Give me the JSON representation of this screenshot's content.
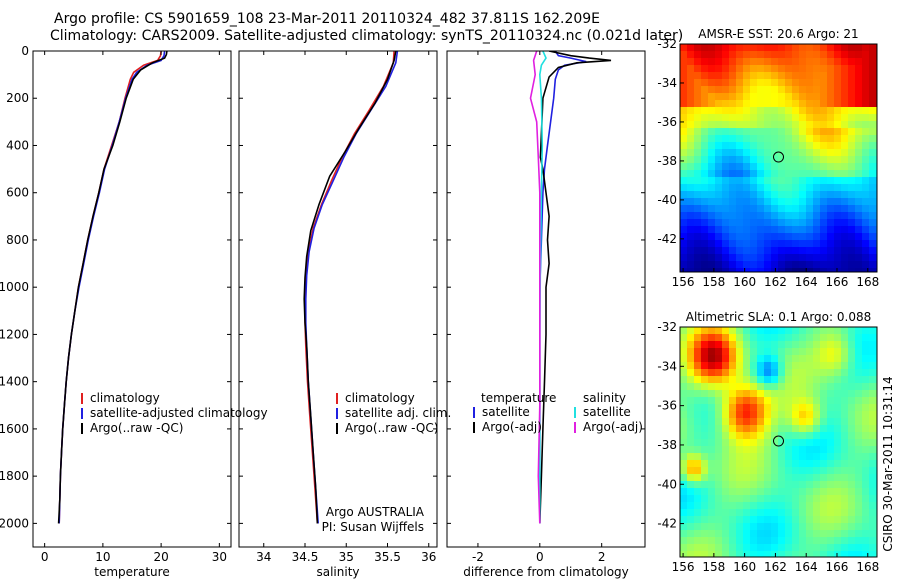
{
  "header": {
    "line1": "Argo profile: CS 5901659_108 23-Mar-2011 20110324_482 37.811S 162.209E",
    "line2": "Climatology: CARS2009. Satellite-adjusted climatology: synTS_20110324.nc (0.021d later)"
  },
  "colors": {
    "red": "#e02020",
    "blue": "#2020e0",
    "black": "#000000",
    "cyan": "#20e0e0",
    "magenta": "#e020e0"
  },
  "chart_data": [
    {
      "type": "line",
      "id": "temperature",
      "xlabel": "temperature",
      "ylabel": "",
      "xlim": [
        -2,
        32
      ],
      "ylim": [
        2100,
        0
      ],
      "xticks": [
        "0",
        "10",
        "20",
        "30"
      ],
      "yticks": [
        "0",
        "200",
        "400",
        "600",
        "800",
        "1000",
        "1200",
        "1400",
        "1600",
        "1800",
        "2000"
      ],
      "legend": [
        "climatology",
        "satellite-adjusted climatology",
        "Argo(..raw -QC)"
      ],
      "series": [
        {
          "name": "climatology",
          "color": "red",
          "points": [
            [
              20.0,
              0
            ],
            [
              19.9,
              20
            ],
            [
              19.4,
              40
            ],
            [
              17.0,
              60
            ],
            [
              15.3,
              90
            ],
            [
              14.7,
              120
            ],
            [
              13.8,
              200
            ],
            [
              12.8,
              300
            ],
            [
              11.5,
              400
            ],
            [
              10.2,
              500
            ],
            [
              9.3,
              600
            ],
            [
              8.3,
              700
            ],
            [
              7.4,
              800
            ],
            [
              6.6,
              900
            ],
            [
              5.8,
              1000
            ],
            [
              5.2,
              1100
            ],
            [
              4.6,
              1200
            ],
            [
              4.1,
              1300
            ],
            [
              3.7,
              1400
            ],
            [
              3.4,
              1500
            ],
            [
              3.1,
              1600
            ],
            [
              2.9,
              1700
            ],
            [
              2.7,
              1800
            ],
            [
              2.6,
              1900
            ],
            [
              2.5,
              2000
            ]
          ]
        },
        {
          "name": "satellite-adjusted climatology",
          "color": "blue",
          "points": [
            [
              20.6,
              0
            ],
            [
              20.5,
              20
            ],
            [
              20.0,
              40
            ],
            [
              17.6,
              60
            ],
            [
              15.8,
              90
            ],
            [
              15.0,
              120
            ],
            [
              13.9,
              200
            ],
            [
              12.8,
              300
            ],
            [
              11.6,
              400
            ],
            [
              10.3,
              500
            ],
            [
              9.4,
              600
            ],
            [
              8.4,
              700
            ],
            [
              7.5,
              800
            ],
            [
              6.7,
              900
            ],
            [
              5.9,
              1000
            ],
            [
              5.2,
              1100
            ],
            [
              4.6,
              1200
            ],
            [
              4.1,
              1300
            ],
            [
              3.7,
              1400
            ],
            [
              3.4,
              1500
            ],
            [
              3.1,
              1600
            ],
            [
              2.9,
              1700
            ],
            [
              2.7,
              1800
            ],
            [
              2.6,
              1900
            ],
            [
              2.5,
              2000
            ]
          ]
        },
        {
          "name": "Argo(..raw -QC)",
          "color": "black",
          "points": [
            [
              21.0,
              0
            ],
            [
              20.9,
              15
            ],
            [
              20.6,
              30
            ],
            [
              18.5,
              50
            ],
            [
              16.5,
              80
            ],
            [
              15.2,
              120
            ],
            [
              14.0,
              200
            ],
            [
              12.9,
              300
            ],
            [
              11.7,
              400
            ],
            [
              10.2,
              500
            ],
            [
              9.3,
              600
            ],
            [
              8.3,
              700
            ],
            [
              7.4,
              800
            ],
            [
              6.6,
              900
            ],
            [
              5.8,
              1000
            ],
            [
              5.2,
              1100
            ],
            [
              4.6,
              1200
            ],
            [
              4.1,
              1300
            ],
            [
              3.7,
              1400
            ],
            [
              3.4,
              1500
            ],
            [
              3.1,
              1600
            ],
            [
              2.9,
              1700
            ],
            [
              2.7,
              1800
            ],
            [
              2.6,
              1900
            ],
            [
              2.4,
              2000
            ]
          ]
        }
      ]
    },
    {
      "type": "line",
      "id": "salinity",
      "xlabel": "salinity",
      "xlim": [
        33.7,
        36.1
      ],
      "ylim": [
        2100,
        0
      ],
      "xticks": [
        "34",
        "34.5",
        "35",
        "35.5",
        "36"
      ],
      "legend": [
        "climatology",
        "satellite adj. clim.",
        "Argo(..raw -QC)"
      ],
      "annotation": [
        "Argo AUSTRALIA",
        "PI: Susan Wijffels"
      ],
      "series": [
        {
          "name": "climatology",
          "color": "red",
          "points": [
            [
              35.58,
              0
            ],
            [
              35.57,
              50
            ],
            [
              35.45,
              150
            ],
            [
              35.28,
              250
            ],
            [
              35.1,
              350
            ],
            [
              34.95,
              450
            ],
            [
              34.82,
              550
            ],
            [
              34.7,
              650
            ],
            [
              34.6,
              750
            ],
            [
              34.54,
              850
            ],
            [
              34.51,
              950
            ],
            [
              34.5,
              1050
            ],
            [
              34.5,
              1150
            ],
            [
              34.51,
              1250
            ],
            [
              34.53,
              1400
            ],
            [
              34.56,
              1550
            ],
            [
              34.59,
              1700
            ],
            [
              34.62,
              1850
            ],
            [
              34.65,
              2000
            ]
          ]
        },
        {
          "name": "satellite adj. clim.",
          "color": "blue",
          "points": [
            [
              35.62,
              0
            ],
            [
              35.6,
              50
            ],
            [
              35.48,
              150
            ],
            [
              35.3,
              250
            ],
            [
              35.12,
              350
            ],
            [
              34.97,
              450
            ],
            [
              34.84,
              550
            ],
            [
              34.71,
              650
            ],
            [
              34.61,
              750
            ],
            [
              34.55,
              850
            ],
            [
              34.52,
              950
            ],
            [
              34.51,
              1050
            ],
            [
              34.51,
              1150
            ],
            [
              34.52,
              1250
            ],
            [
              34.54,
              1400
            ],
            [
              34.57,
              1550
            ],
            [
              34.6,
              1700
            ],
            [
              34.63,
              1850
            ],
            [
              34.66,
              2000
            ]
          ]
        },
        {
          "name": "Argo(..raw -QC)",
          "color": "black",
          "points": [
            [
              35.6,
              0
            ],
            [
              35.58,
              40
            ],
            [
              35.5,
              120
            ],
            [
              35.35,
              220
            ],
            [
              35.15,
              330
            ],
            [
              34.98,
              430
            ],
            [
              34.8,
              530
            ],
            [
              34.67,
              650
            ],
            [
              34.57,
              760
            ],
            [
              34.52,
              870
            ],
            [
              34.5,
              960
            ],
            [
              34.49,
              1050
            ],
            [
              34.5,
              1150
            ],
            [
              34.52,
              1250
            ],
            [
              34.54,
              1400
            ],
            [
              34.57,
              1550
            ],
            [
              34.6,
              1700
            ],
            [
              34.63,
              1850
            ],
            [
              34.65,
              2000
            ]
          ]
        }
      ]
    },
    {
      "type": "line",
      "id": "difference",
      "xlabel": "difference from climatology",
      "xlim": [
        -3.0,
        3.4
      ],
      "ylim": [
        2100,
        0
      ],
      "xticks": [
        "-2",
        "0",
        "2"
      ],
      "legend_temp_title": "temperature",
      "legend_sal_title": "salinity",
      "legend_temp": [
        "satellite",
        "Argo(-adj)"
      ],
      "legend_sal": [
        "satellite",
        "Argo(-adj)"
      ],
      "series": [
        {
          "name": "temperature satellite",
          "color": "blue",
          "points": [
            [
              0.5,
              0
            ],
            [
              0.6,
              20
            ],
            [
              1.0,
              30
            ],
            [
              1.5,
              45
            ],
            [
              0.8,
              60
            ],
            [
              0.6,
              80
            ],
            [
              0.5,
              120
            ],
            [
              0.45,
              200
            ],
            [
              0.35,
              300
            ],
            [
              0.25,
              400
            ],
            [
              0.15,
              500
            ],
            [
              0.1,
              600
            ],
            [
              0.05,
              800
            ],
            [
              0.0,
              1000
            ],
            [
              0.0,
              1500
            ],
            [
              0.0,
              2000
            ]
          ]
        },
        {
          "name": "temperature Argo(-adj)",
          "color": "black",
          "points": [
            [
              0.3,
              0
            ],
            [
              1.0,
              20
            ],
            [
              1.6,
              30
            ],
            [
              2.3,
              40
            ],
            [
              1.2,
              50
            ],
            [
              0.6,
              70
            ],
            [
              0.3,
              110
            ],
            [
              0.1,
              200
            ],
            [
              0.05,
              350
            ],
            [
              0.02,
              450
            ],
            [
              0.1,
              500
            ],
            [
              0.2,
              600
            ],
            [
              0.3,
              700
            ],
            [
              0.25,
              800
            ],
            [
              0.3,
              900
            ],
            [
              0.2,
              1000
            ],
            [
              0.2,
              1200
            ],
            [
              0.15,
              1400
            ],
            [
              0.1,
              1600
            ],
            [
              0.05,
              1800
            ],
            [
              0.0,
              2000
            ]
          ]
        },
        {
          "name": "salinity satellite",
          "color": "cyan",
          "points": [
            [
              0.1,
              0
            ],
            [
              0.2,
              30
            ],
            [
              0.05,
              60
            ],
            [
              0.0,
              100
            ],
            [
              0.05,
              200
            ],
            [
              0.08,
              400
            ],
            [
              0.05,
              600
            ],
            [
              0.02,
              900
            ],
            [
              0.0,
              1200
            ],
            [
              0.0,
              1600
            ],
            [
              0.0,
              2000
            ]
          ]
        },
        {
          "name": "salinity Argo(-adj)",
          "color": "magenta",
          "points": [
            [
              -0.1,
              0
            ],
            [
              -0.2,
              40
            ],
            [
              -0.15,
              100
            ],
            [
              -0.3,
              200
            ],
            [
              -0.1,
              300
            ],
            [
              -0.05,
              450
            ],
            [
              0.0,
              600
            ],
            [
              0.0,
              1000
            ],
            [
              0.0,
              1500
            ],
            [
              -0.05,
              1800
            ],
            [
              0.0,
              2000
            ]
          ]
        }
      ]
    },
    {
      "type": "heatmap",
      "id": "sst",
      "title": "AMSR-E SST: 20.6 Argo: 21",
      "xlim": [
        155.8,
        168.6
      ],
      "ylim": [
        -43.7,
        -32.0
      ],
      "xticks": [
        "156",
        "158",
        "160",
        "162",
        "164",
        "166",
        "168"
      ],
      "yticks": [
        "-32",
        "-34",
        "-36",
        "-38",
        "-40",
        "-42"
      ],
      "marker": [
        162.2,
        -37.8
      ]
    },
    {
      "type": "heatmap",
      "id": "sla",
      "title": "Altimetric SLA: 0.1 Argo: 0.088",
      "xlim": [
        155.8,
        168.6
      ],
      "ylim": [
        -43.7,
        -32.0
      ],
      "xticks": [
        "156",
        "158",
        "160",
        "162",
        "164",
        "166",
        "168"
      ],
      "yticks": [
        "-32",
        "-34",
        "-36",
        "-38",
        "-40",
        "-42"
      ],
      "marker": [
        162.2,
        -37.8
      ],
      "side_text": "CSIRO 30-Mar-2011 10:31:14"
    }
  ]
}
